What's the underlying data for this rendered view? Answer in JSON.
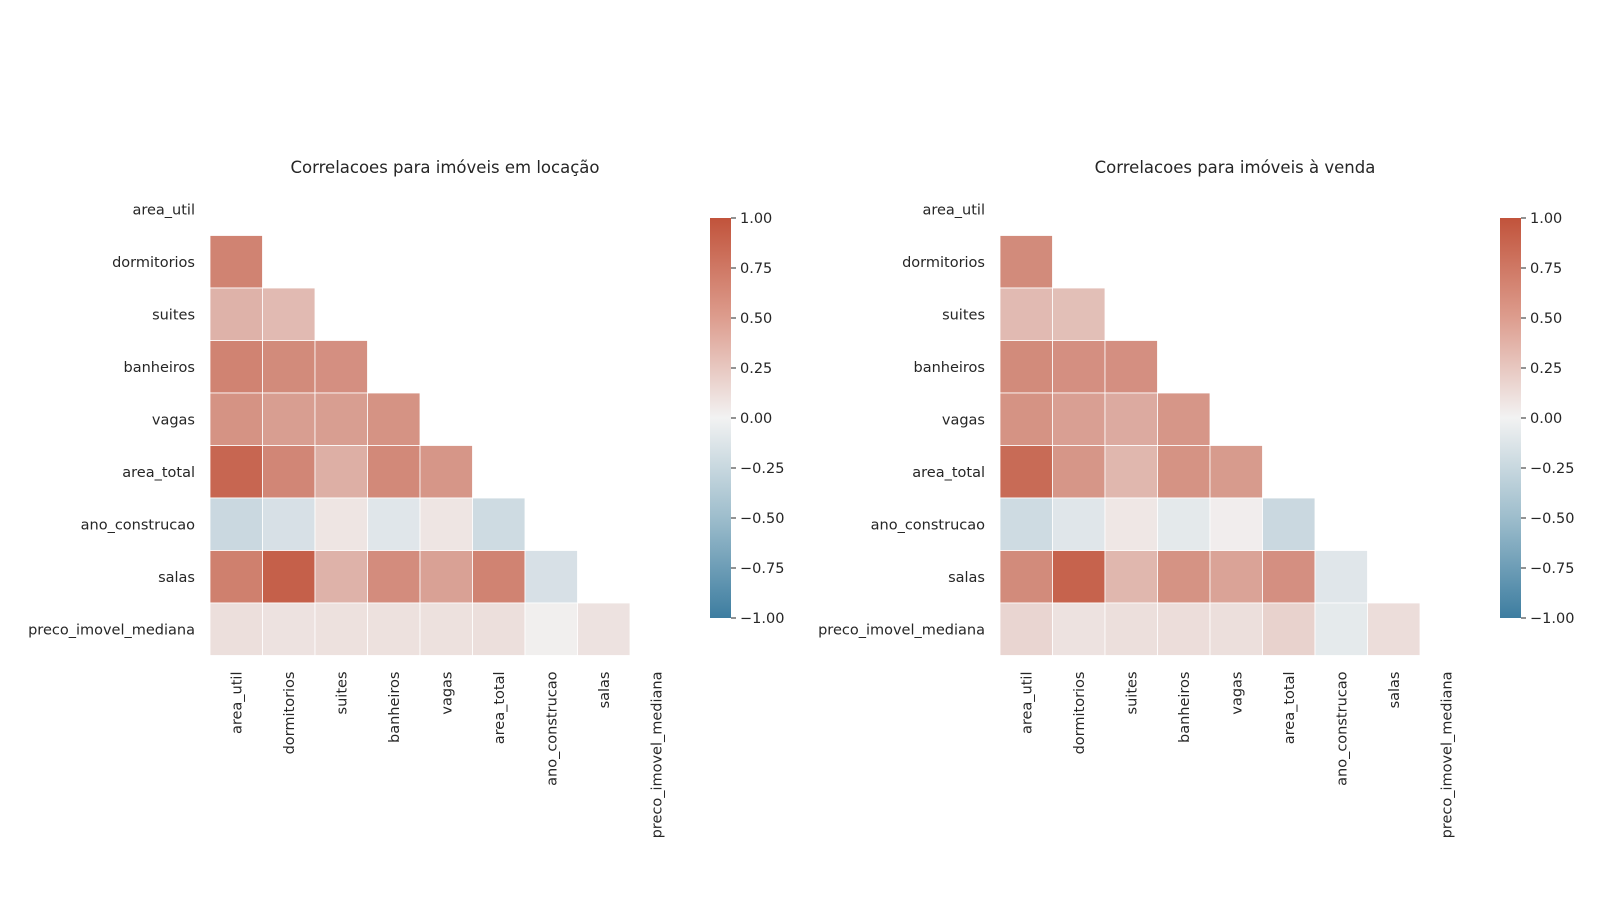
{
  "chart_data": [
    {
      "type": "heatmap",
      "title": "Correlacoes para imóveis em locação",
      "variables": [
        "area_util",
        "dormitorios",
        "suites",
        "banheiros",
        "vagas",
        "area_total",
        "ano_construcao",
        "salas",
        "preco_imovel_mediana"
      ],
      "mask": "upper-triangle-including-diagonal",
      "values": [
        [
          null,
          null,
          null,
          null,
          null,
          null,
          null,
          null,
          null
        ],
        [
          0.7,
          null,
          null,
          null,
          null,
          null,
          null,
          null,
          null
        ],
        [
          0.4,
          0.35,
          null,
          null,
          null,
          null,
          null,
          null,
          null
        ],
        [
          0.7,
          0.65,
          0.62,
          null,
          null,
          null,
          null,
          null,
          null
        ],
        [
          0.6,
          0.53,
          0.53,
          0.6,
          null,
          null,
          null,
          null,
          null
        ],
        [
          0.88,
          0.68,
          0.42,
          0.66,
          0.58,
          null,
          null,
          null,
          null
        ],
        [
          -0.22,
          -0.15,
          0.08,
          -0.1,
          0.08,
          -0.2,
          null,
          null,
          null
        ],
        [
          0.72,
          0.92,
          0.4,
          0.64,
          0.51,
          0.7,
          -0.15,
          null,
          null
        ],
        [
          0.12,
          0.1,
          0.11,
          0.11,
          0.11,
          0.12,
          0.02,
          0.1,
          null
        ]
      ],
      "colorbar": {
        "min": -1,
        "max": 1,
        "ticks": [
          "1.00",
          "0.75",
          "0.50",
          "0.25",
          "0.00",
          "−0.25",
          "−0.50",
          "−0.75",
          "−1.00"
        ]
      },
      "colors": {
        "negative": "#3d7da0",
        "center": "#f2f2f2",
        "positive": "#c1533b"
      }
    },
    {
      "type": "heatmap",
      "title": "Correlacoes para imóveis à venda",
      "variables": [
        "area_util",
        "dormitorios",
        "suites",
        "banheiros",
        "vagas",
        "area_total",
        "ano_construcao",
        "salas",
        "preco_imovel_mediana"
      ],
      "mask": "upper-triangle-including-diagonal",
      "values": [
        [
          null,
          null,
          null,
          null,
          null,
          null,
          null,
          null,
          null
        ],
        [
          0.65,
          null,
          null,
          null,
          null,
          null,
          null,
          null,
          null
        ],
        [
          0.35,
          0.32,
          null,
          null,
          null,
          null,
          null,
          null,
          null
        ],
        [
          0.65,
          0.62,
          0.62,
          null,
          null,
          null,
          null,
          null,
          null
        ],
        [
          0.6,
          0.52,
          0.45,
          0.58,
          null,
          null,
          null,
          null,
          null
        ],
        [
          0.85,
          0.58,
          0.37,
          0.6,
          0.55,
          null,
          null,
          null,
          null
        ],
        [
          -0.2,
          -0.1,
          0.07,
          -0.08,
          0.03,
          -0.22,
          null,
          null,
          null
        ],
        [
          0.65,
          0.9,
          0.37,
          0.6,
          0.5,
          0.62,
          -0.1,
          null,
          null
        ],
        [
          0.18,
          0.1,
          0.12,
          0.13,
          0.12,
          0.2,
          -0.07,
          0.13,
          null
        ]
      ],
      "colorbar": {
        "min": -1,
        "max": 1,
        "ticks": [
          "1.00",
          "0.75",
          "0.50",
          "0.25",
          "0.00",
          "−0.25",
          "−0.50",
          "−0.75",
          "−1.00"
        ]
      },
      "colors": {
        "negative": "#3d7da0",
        "center": "#f2f2f2",
        "positive": "#c1533b"
      }
    }
  ]
}
